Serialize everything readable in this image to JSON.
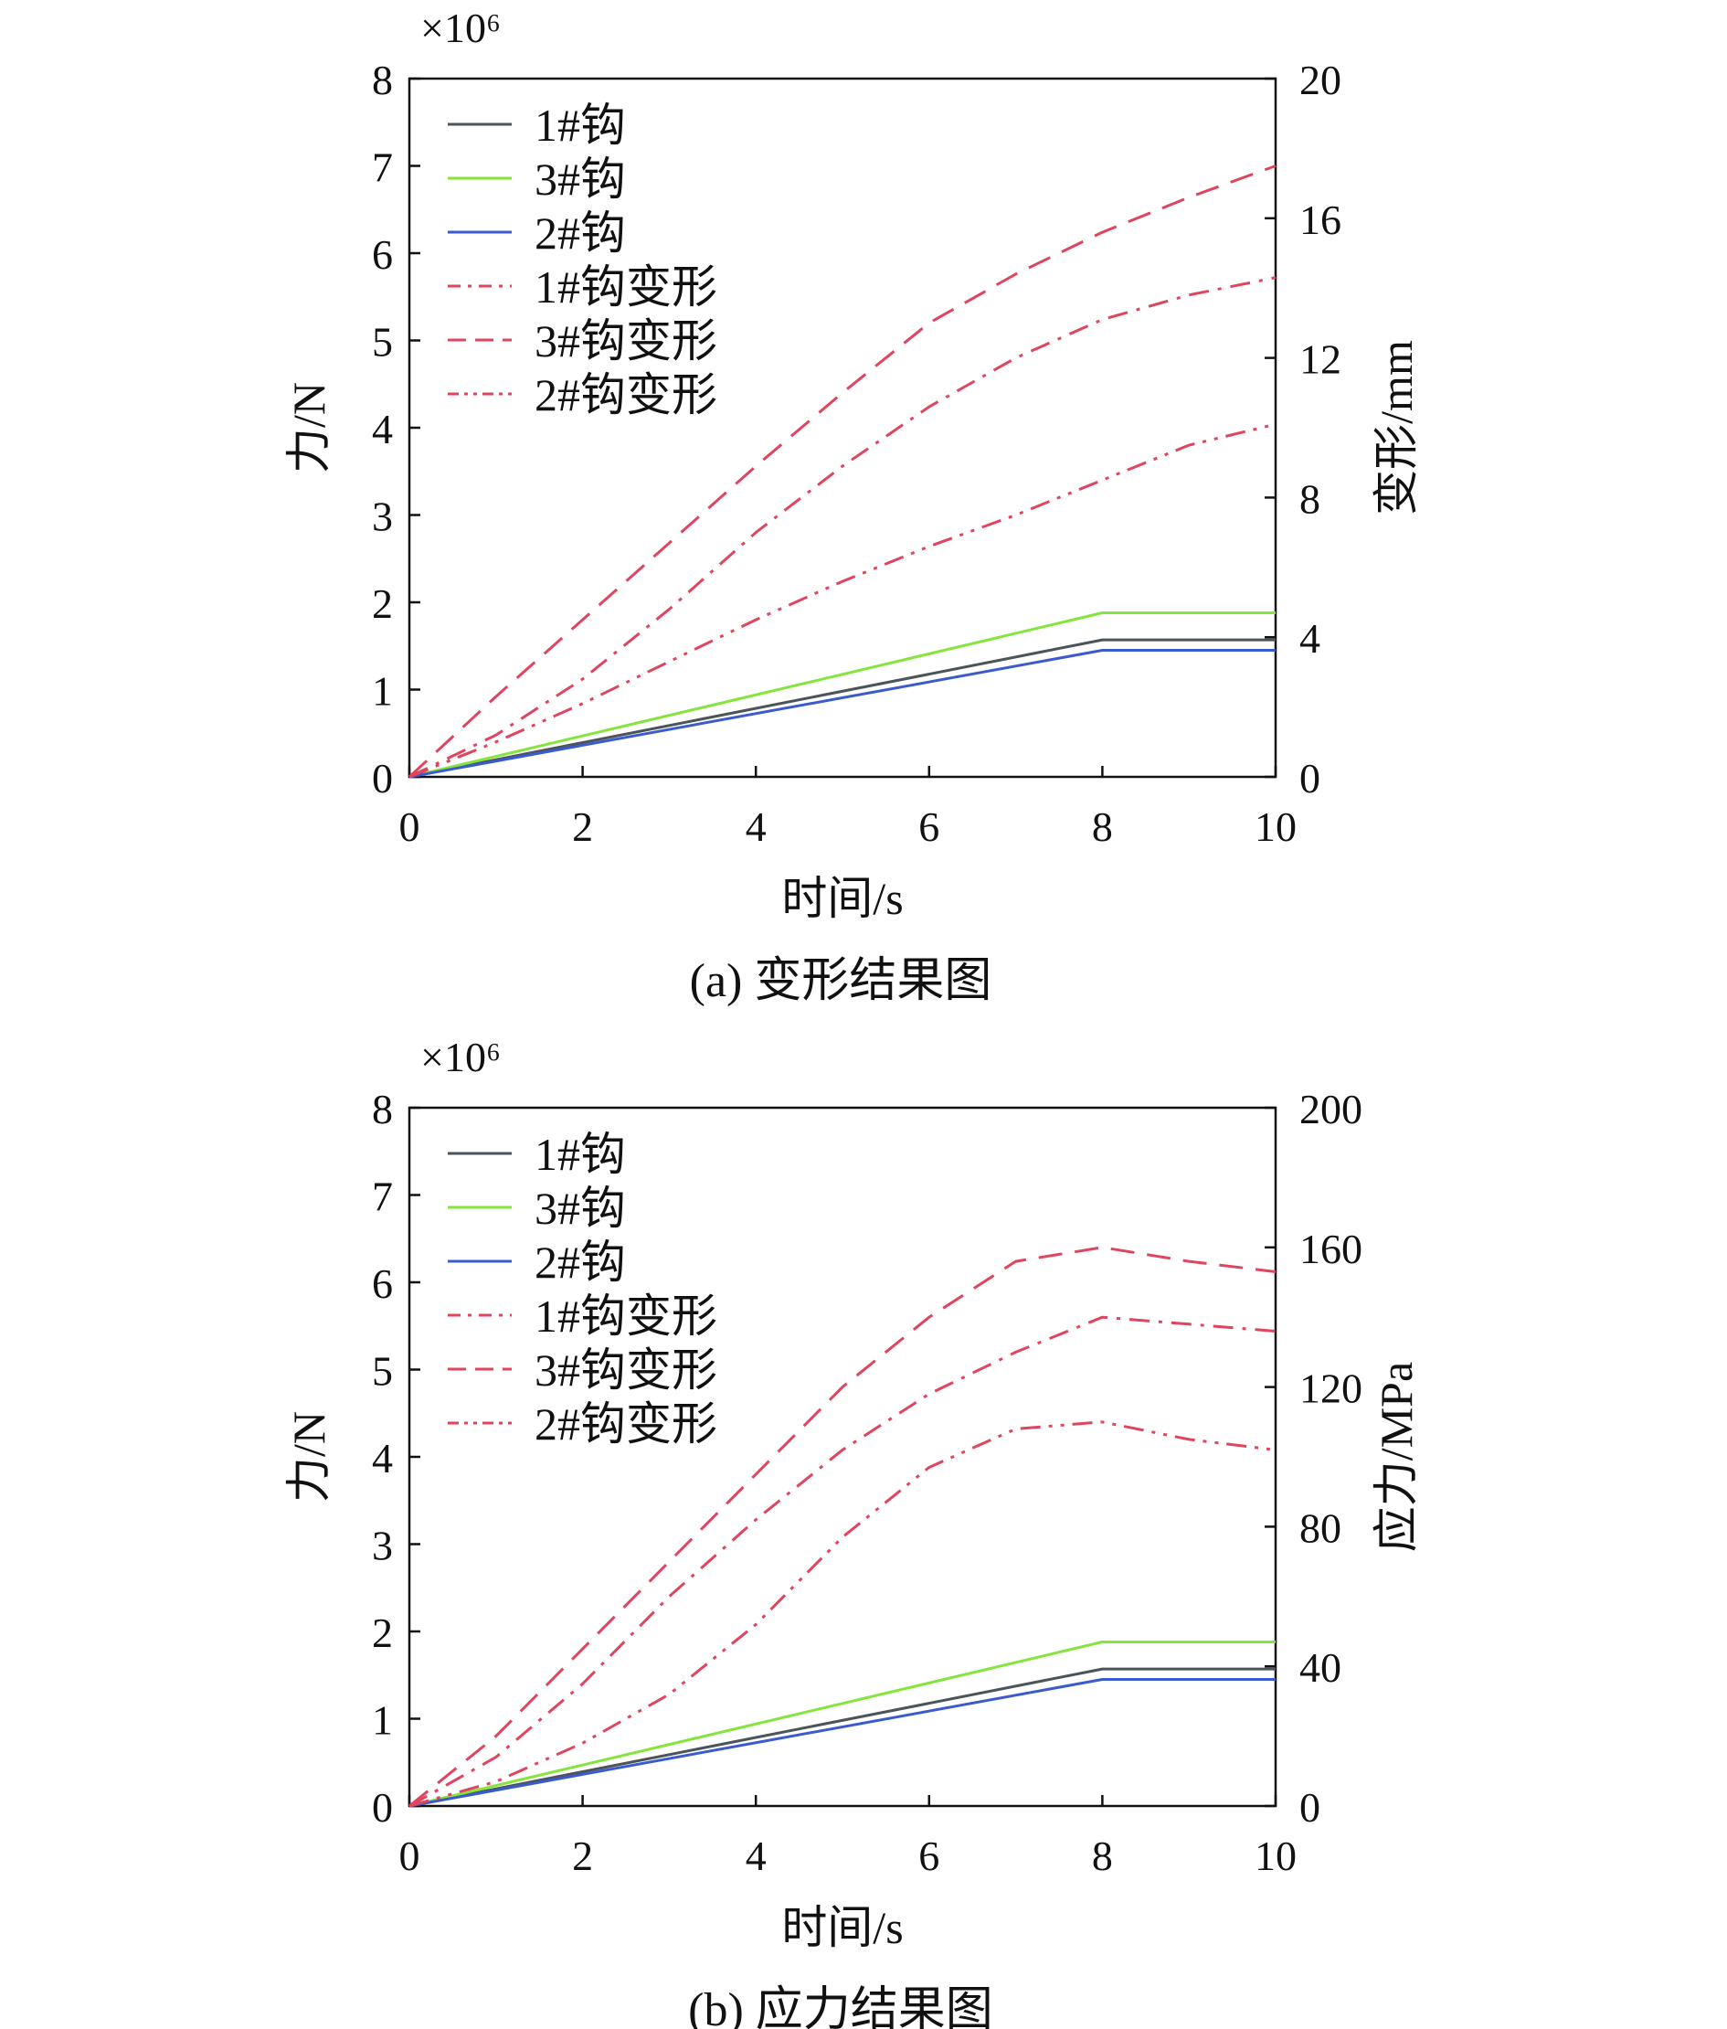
{
  "chart_data": [
    {
      "type": "line",
      "caption": "(a) 变形结果图",
      "xlabel": "时间/s",
      "ylabel_left": "力/N",
      "ylabel_right": "变形/mm",
      "multiplier": "×10⁶",
      "xlim": [
        0,
        10
      ],
      "ylim_left": [
        0,
        8
      ],
      "ylim_right": [
        0,
        20
      ],
      "x_ticks": [
        "0",
        "2",
        "4",
        "6",
        "8",
        "10"
      ],
      "y_left_ticks": [
        "0",
        "1",
        "2",
        "3",
        "4",
        "5",
        "6",
        "7",
        "8"
      ],
      "y_right_ticks": [
        "0",
        "4",
        "8",
        "12",
        "16",
        "20"
      ],
      "grid": false,
      "legend_position": "top-left",
      "series": [
        {
          "name": "1#钩",
          "axis": "left",
          "color": "#4a5459",
          "dash": "solid",
          "x": [
            0,
            8,
            10
          ],
          "y": [
            0,
            1.57,
            1.57
          ]
        },
        {
          "name": "3#钩",
          "axis": "left",
          "color": "#84e53a",
          "dash": "solid",
          "x": [
            0,
            8,
            10
          ],
          "y": [
            0,
            1.88,
            1.88
          ]
        },
        {
          "name": "2#钩",
          "axis": "left",
          "color": "#3a5bd0",
          "dash": "solid",
          "x": [
            0,
            8,
            10
          ],
          "y": [
            0,
            1.45,
            1.45
          ]
        },
        {
          "name": "1#钩变形",
          "axis": "right",
          "color": "#e0445e",
          "dash": "dashdot",
          "x": [
            0,
            1,
            2,
            3,
            4,
            5,
            6,
            7,
            8,
            9,
            10
          ],
          "y": [
            0,
            1.2,
            2.8,
            4.8,
            7.0,
            8.9,
            10.6,
            12.0,
            13.1,
            13.8,
            14.3
          ]
        },
        {
          "name": "3#钩变形",
          "axis": "right",
          "color": "#e0445e",
          "dash": "dashed",
          "x": [
            0,
            1,
            2,
            3,
            4,
            5,
            6,
            7,
            8,
            9,
            10
          ],
          "y": [
            0,
            2.3,
            4.5,
            6.7,
            8.9,
            11.0,
            13.0,
            14.4,
            15.6,
            16.6,
            17.5
          ]
        },
        {
          "name": "2#钩变形",
          "axis": "right",
          "color": "#e0445e",
          "dash": "dashdotdot",
          "x": [
            0,
            1,
            2,
            3,
            4,
            5,
            6,
            7,
            8,
            9,
            10
          ],
          "y": [
            0,
            1.0,
            2.1,
            3.3,
            4.5,
            5.6,
            6.6,
            7.5,
            8.5,
            9.5,
            10.1
          ]
        }
      ]
    },
    {
      "type": "line",
      "caption": "(b) 应力结果图",
      "xlabel": "时间/s",
      "ylabel_left": "力/N",
      "ylabel_right": "应力/MPa",
      "multiplier": "×10⁶",
      "xlim": [
        0,
        10
      ],
      "ylim_left": [
        0,
        8
      ],
      "ylim_right": [
        0,
        200
      ],
      "x_ticks": [
        "0",
        "2",
        "4",
        "6",
        "8",
        "10"
      ],
      "y_left_ticks": [
        "0",
        "1",
        "2",
        "3",
        "4",
        "5",
        "6",
        "7",
        "8"
      ],
      "y_right_ticks": [
        "0",
        "40",
        "80",
        "120",
        "160",
        "200"
      ],
      "grid": false,
      "legend_position": "top-left",
      "series": [
        {
          "name": "1#钩",
          "axis": "left",
          "color": "#4a5459",
          "dash": "solid",
          "x": [
            0,
            8,
            10
          ],
          "y": [
            0,
            1.57,
            1.57
          ]
        },
        {
          "name": "3#钩",
          "axis": "left",
          "color": "#84e53a",
          "dash": "solid",
          "x": [
            0,
            8,
            10
          ],
          "y": [
            0,
            1.88,
            1.88
          ]
        },
        {
          "name": "2#钩",
          "axis": "left",
          "color": "#3a5bd0",
          "dash": "solid",
          "x": [
            0,
            8,
            10
          ],
          "y": [
            0,
            1.45,
            1.45
          ]
        },
        {
          "name": "1#钩变形",
          "axis": "right",
          "color": "#e0445e",
          "dash": "dashdot",
          "x": [
            0,
            1,
            2,
            3,
            4,
            5,
            6,
            7,
            8,
            9,
            10
          ],
          "y": [
            0,
            14,
            35,
            60,
            82,
            102,
            118,
            130,
            140,
            138,
            136
          ]
        },
        {
          "name": "3#钩变形",
          "axis": "right",
          "color": "#e0445e",
          "dash": "dashed",
          "x": [
            0,
            1,
            2,
            3,
            4,
            5,
            6,
            7,
            8,
            9,
            10
          ],
          "y": [
            0,
            20,
            45,
            70,
            95,
            120,
            140,
            156,
            160,
            156,
            153
          ]
        },
        {
          "name": "2#钩变形",
          "axis": "right",
          "color": "#e0445e",
          "dash": "dashdotdot",
          "x": [
            0,
            1,
            2,
            3,
            4,
            5,
            6,
            7,
            8,
            9,
            10
          ],
          "y": [
            0,
            7,
            18,
            32,
            52,
            77,
            97,
            108,
            110,
            105,
            102
          ]
        }
      ]
    }
  ]
}
